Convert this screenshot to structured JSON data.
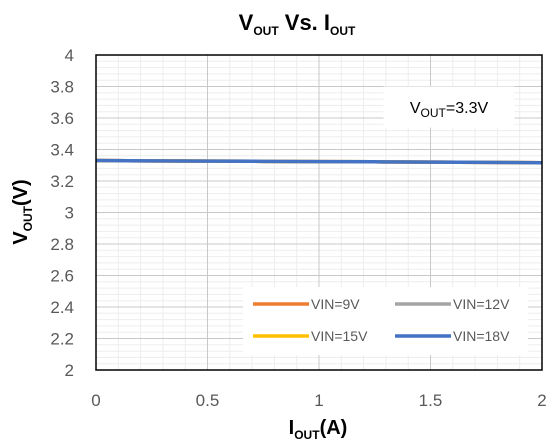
{
  "chart_data": {
    "type": "line",
    "title": {
      "main": "V",
      "main_sub": "OUT",
      "mid": " Vs. I",
      "end_sub": "OUT"
    },
    "xlabel": {
      "main": "I",
      "sub": "OUT",
      "end": "(A)"
    },
    "ylabel": {
      "main": "V",
      "sub": "OUT",
      "end": "(V)"
    },
    "xlim": [
      0,
      2
    ],
    "ylim": [
      2,
      4
    ],
    "x_ticks": [
      "0",
      "0.5",
      "1",
      "1.5",
      "2"
    ],
    "y_ticks": [
      "2",
      "2.2",
      "2.4",
      "2.6",
      "2.8",
      "3",
      "3.2",
      "3.4",
      "3.6",
      "3.8",
      "4"
    ],
    "grid": true,
    "legend_position": "bottom-right",
    "annotation": {
      "main": "V",
      "sub": "OUT",
      "end": "=3.3V"
    },
    "x": [
      0,
      0.25,
      0.5,
      0.75,
      1,
      1.25,
      1.5,
      1.75,
      2
    ],
    "series": [
      {
        "name": "VIN=9V",
        "color": "#ED7D31",
        "values": [
          3.33,
          3.328,
          3.326,
          3.325,
          3.323,
          3.322,
          3.32,
          3.318,
          3.316
        ]
      },
      {
        "name": "VIN=12V",
        "color": "#A5A5A5",
        "values": [
          3.33,
          3.328,
          3.326,
          3.325,
          3.323,
          3.322,
          3.32,
          3.318,
          3.316
        ]
      },
      {
        "name": "VIN=15V",
        "color": "#FFC000",
        "values": [
          3.33,
          3.328,
          3.326,
          3.325,
          3.323,
          3.322,
          3.32,
          3.318,
          3.316
        ]
      },
      {
        "name": "VIN=18V",
        "color": "#4472C4",
        "values": [
          3.33,
          3.328,
          3.326,
          3.325,
          3.323,
          3.322,
          3.32,
          3.318,
          3.316
        ]
      }
    ]
  }
}
